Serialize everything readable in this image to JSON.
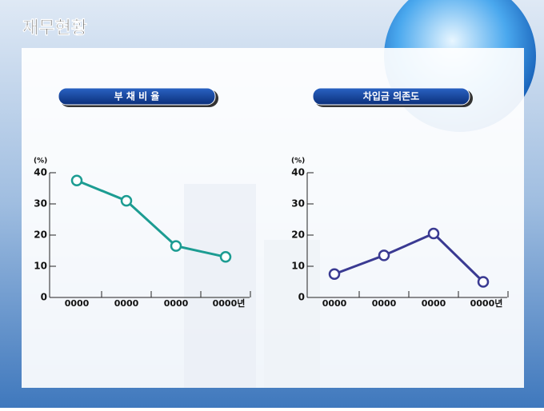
{
  "page_title": "재무현황",
  "chart_data": [
    {
      "type": "line",
      "title": "부 채 비 율",
      "y_label": "(%)",
      "categories": [
        "0000",
        "0000",
        "0000",
        "0000년"
      ],
      "values": [
        37.5,
        31,
        16.5,
        13
      ],
      "color": "#1c9c92",
      "ylim": [
        0,
        40
      ],
      "yticks": [
        0,
        10,
        20,
        30,
        40
      ]
    },
    {
      "type": "line",
      "title": "차입금 의존도",
      "y_label": "(%)",
      "categories": [
        "0000",
        "0000",
        "0000",
        "0000년"
      ],
      "values": [
        7.5,
        13.5,
        20.5,
        5
      ],
      "color": "#3a3a92",
      "ylim": [
        0,
        40
      ],
      "yticks": [
        0,
        10,
        20,
        30,
        40
      ]
    }
  ]
}
